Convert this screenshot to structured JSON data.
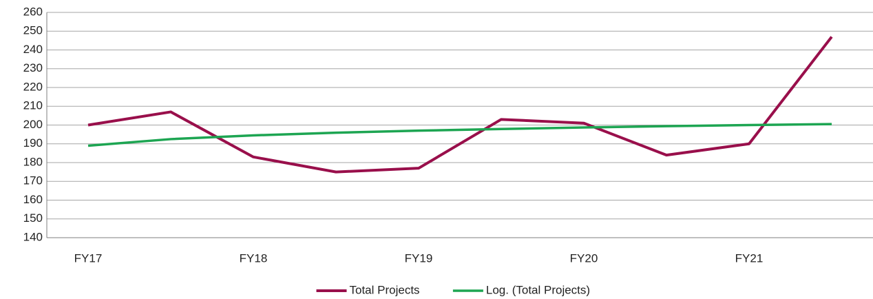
{
  "chart_data": {
    "type": "line",
    "categories": [
      "FY17",
      null,
      "FY18",
      null,
      "FY19",
      null,
      "FY20",
      null,
      "FY21",
      null
    ],
    "series": [
      {
        "name": "Total Projects",
        "color": "#990f4b",
        "values": [
          200,
          207,
          183,
          175,
          177,
          203,
          201,
          184,
          190,
          247
        ]
      },
      {
        "name": "Log. (Total Projects)",
        "color": "#1da552",
        "values": [
          189,
          192.5,
          194.5,
          195.9,
          197.0,
          197.9,
          198.7,
          199.4,
          200.0,
          200.5
        ]
      }
    ],
    "ylim": [
      140,
      260
    ],
    "yticks": [
      140,
      150,
      160,
      170,
      180,
      190,
      200,
      210,
      220,
      230,
      240,
      250,
      260
    ],
    "grid": true,
    "legend": "bottom"
  }
}
